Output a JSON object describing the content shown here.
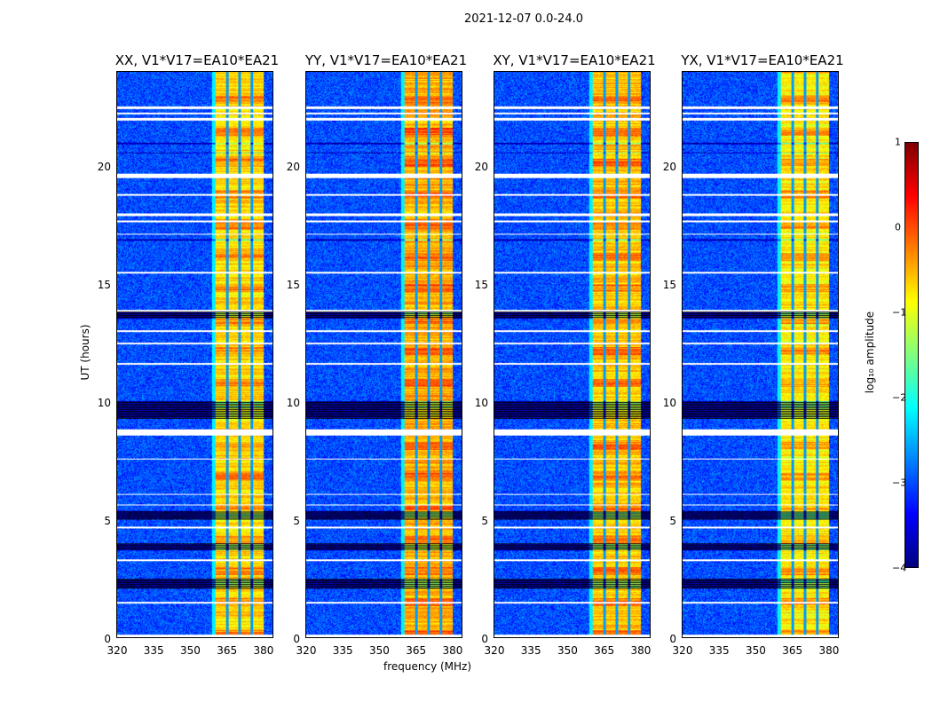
{
  "chart_data": {
    "type": "heatmap",
    "title": "2021-12-07 0.0-24.0",
    "xlabel": "frequency (MHz)",
    "ylabel": "UT (hours)",
    "xlim": [
      320,
      384.4
    ],
    "ylim": [
      0,
      24
    ],
    "xticks": [
      "320",
      "335",
      "350",
      "365",
      "380"
    ],
    "yticks": [
      "0",
      "5",
      "10",
      "15",
      "20"
    ],
    "panels": [
      {
        "title": "XX, V1*V17=EA10*EA21",
        "band_level": -0.7
      },
      {
        "title": "YY, V1*V17=EA10*EA21",
        "band_level": -0.5
      },
      {
        "title": "XY, V1*V17=EA10*EA21",
        "band_level": -0.6
      },
      {
        "title": "YX, V1*V17=EA10*EA21",
        "band_level": -0.8
      }
    ],
    "background_level": -3.0,
    "band_mhz": [
      360.7,
      380.5
    ],
    "band_notches_mhz": [
      365.5,
      370.5,
      375.6
    ],
    "flagged_hours_white": [
      [
        22.45,
        22.55
      ],
      [
        22.2,
        22.3
      ],
      [
        21.95,
        22.05
      ],
      [
        19.5,
        19.7
      ],
      [
        18.75,
        18.82
      ],
      [
        17.9,
        18.0
      ],
      [
        17.65,
        17.72
      ],
      [
        17.1,
        17.15
      ],
      [
        15.45,
        15.52
      ],
      [
        13.85,
        13.92
      ],
      [
        12.98,
        13.04
      ],
      [
        12.45,
        12.52
      ],
      [
        11.6,
        11.68
      ],
      [
        8.6,
        8.85
      ],
      [
        7.55,
        7.62
      ],
      [
        6.05,
        6.12
      ],
      [
        5.6,
        5.67
      ],
      [
        4.65,
        4.72
      ],
      [
        3.25,
        3.32
      ],
      [
        1.45,
        1.52
      ],
      [
        0.0,
        0.12
      ]
    ],
    "dark_hours": [
      [
        20.95,
        21.02
      ],
      [
        20.55,
        20.6
      ],
      [
        16.85,
        16.92
      ],
      [
        13.55,
        13.85
      ],
      [
        9.3,
        10.05
      ],
      [
        5.0,
        5.4
      ],
      [
        3.7,
        4.0
      ],
      [
        2.1,
        2.5
      ]
    ],
    "colorbar": {
      "label": "log₁₀ amplitude",
      "ticks": [
        "1",
        "0",
        "−1",
        "−2",
        "−3",
        "−4"
      ],
      "range": [
        -4,
        1
      ],
      "colormap": "jet"
    }
  }
}
